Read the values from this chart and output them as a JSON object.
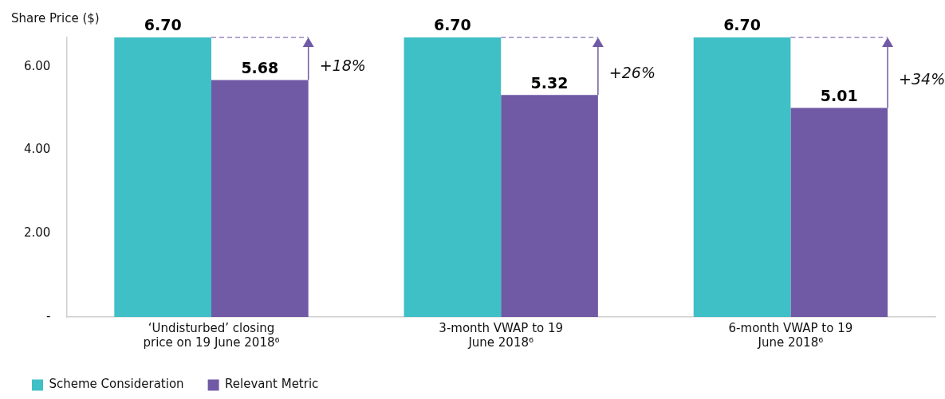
{
  "chart_data": {
    "type": "bar",
    "ylabel": "Share Price ($)",
    "categories": [
      "‘Undisturbed’ closing price on 19 June 2018⁶",
      "3-month VWAP to 19 June 2018⁶",
      "6-month VWAP to 19 June 2018⁶"
    ],
    "series": [
      {
        "name": "Scheme Consideration",
        "color": "#3fbfc6",
        "values": [
          6.7,
          6.7,
          6.7
        ],
        "value_labels": [
          "6.70",
          "6.70",
          "6.70"
        ]
      },
      {
        "name": "Relevant Metric",
        "color": "#7059a5",
        "values": [
          5.68,
          5.32,
          5.01
        ],
        "value_labels": [
          "5.68",
          "5.32",
          "5.01"
        ]
      }
    ],
    "ylim": [
      0,
      6.7
    ],
    "yticks": [
      {
        "value": 0,
        "label": "-"
      },
      {
        "value": 2,
        "label": "2.00"
      },
      {
        "value": 4,
        "label": "4.00"
      },
      {
        "value": 6,
        "label": "6.00"
      }
    ],
    "legend": "bottom left",
    "annotations": [
      "+18%",
      "+26%",
      "+34%"
    ]
  }
}
